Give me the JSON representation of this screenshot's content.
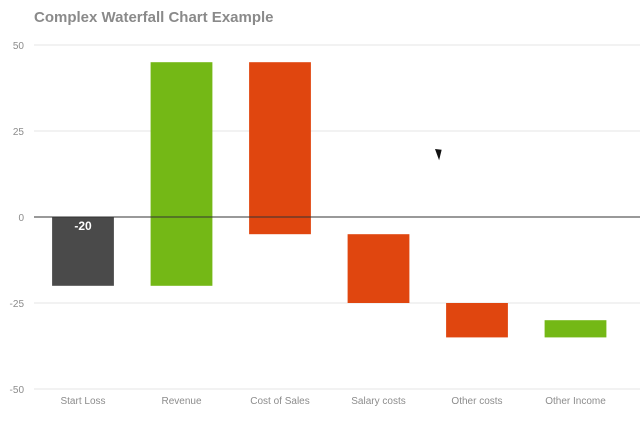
{
  "chart_data": {
    "type": "bar",
    "title": "Complex Waterfall Chart Example",
    "xlabel": "",
    "ylabel": "",
    "ylim": [
      -50,
      50
    ],
    "yticks": [
      50,
      25,
      0,
      -25,
      -50
    ],
    "grid": true,
    "legend": "none",
    "categories": [
      "Start Loss",
      "Revenue",
      "Cost of Sales",
      "Salary costs",
      "Other costs",
      "Other Income"
    ],
    "bars": [
      {
        "category": "Start Loss",
        "start": 0,
        "end": -20,
        "label": "-20",
        "color": "#4a4a4a"
      },
      {
        "category": "Revenue",
        "start": -20,
        "end": 45,
        "label": "",
        "color": "#74b816"
      },
      {
        "category": "Cost of Sales",
        "start": 45,
        "end": -5,
        "label": "",
        "color": "#e0460f"
      },
      {
        "category": "Salary costs",
        "start": -5,
        "end": -25,
        "label": "",
        "color": "#e0460f"
      },
      {
        "category": "Other costs",
        "start": -25,
        "end": -35,
        "label": "",
        "color": "#e0460f"
      },
      {
        "category": "Other Income",
        "start": -35,
        "end": -30,
        "label": "",
        "color": "#74b816"
      }
    ]
  }
}
